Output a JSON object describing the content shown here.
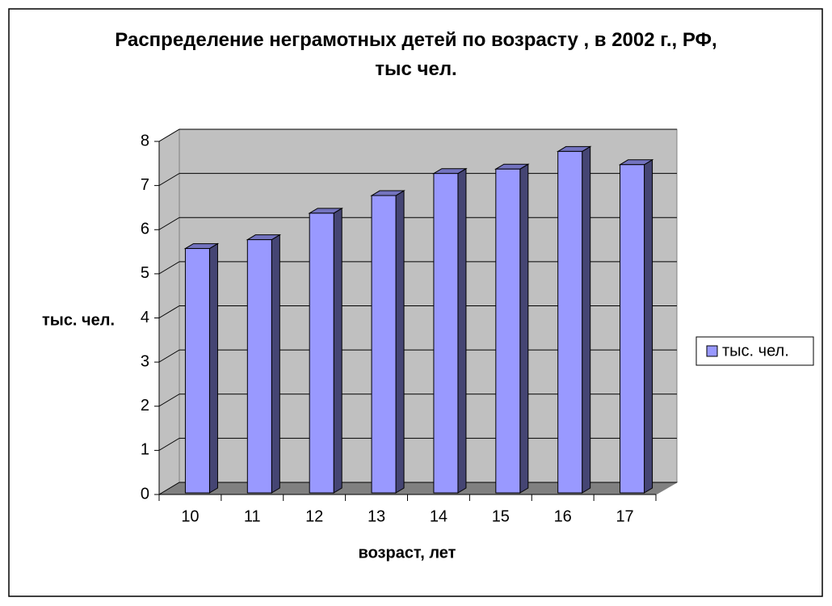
{
  "chart_data": {
    "type": "bar",
    "title": "Распределение неграмотных детей по возрасту , в 2002 г., РФ, тыс чел.",
    "xlabel": "возраст, лет",
    "ylabel": "тыс. чел.",
    "categories": [
      "10",
      "11",
      "12",
      "13",
      "14",
      "15",
      "16",
      "17"
    ],
    "series": [
      {
        "name": "тыс. чел.",
        "color": "#9999ff",
        "values": [
          5.5,
          5.7,
          6.3,
          6.7,
          7.2,
          7.3,
          7.7,
          7.4
        ]
      }
    ],
    "ylim": [
      0,
      8
    ],
    "yticks": [
      0,
      1,
      2,
      3,
      4,
      5,
      6,
      7,
      8
    ],
    "grid": true,
    "legend": "right"
  }
}
